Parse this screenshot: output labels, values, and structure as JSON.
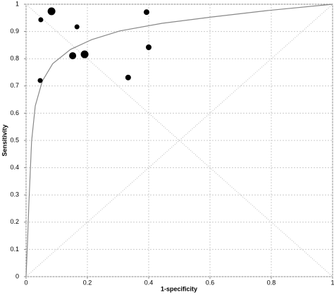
{
  "chart_data": {
    "type": "scatter",
    "x_label": "1-specificity",
    "y_label": "Sensitivity",
    "xlim": [
      0,
      1
    ],
    "ylim": [
      0,
      1
    ],
    "xticks": [
      0,
      0.2,
      0.4,
      0.6,
      0.8,
      1
    ],
    "yticks": [
      0,
      0.1,
      0.2,
      0.3,
      0.4,
      0.5,
      0.6,
      0.7,
      0.8,
      0.9,
      1
    ],
    "grid": true,
    "color": "#000000",
    "points": {
      "x": [
        0.083,
        0.048,
        0.166,
        0.393,
        0.4,
        0.152,
        0.191,
        0.046,
        0.333
      ],
      "y": [
        0.974,
        0.943,
        0.917,
        0.971,
        0.842,
        0.811,
        0.816,
        0.72,
        0.731
      ],
      "sizes": [
        5.5,
        3.5,
        3.5,
        4,
        4,
        5,
        5.5,
        3.5,
        4
      ]
    },
    "curve": {
      "color": "#888888",
      "x": [
        0,
        0.005,
        0.009,
        0.018,
        0.03,
        0.053,
        0.087,
        0.145,
        0.214,
        0.306,
        0.444,
        0.605,
        0.789,
        1
      ],
      "y": [
        0,
        0.135,
        0.264,
        0.497,
        0.627,
        0.718,
        0.782,
        0.834,
        0.87,
        0.902,
        0.93,
        0.953,
        0.977,
        1
      ]
    }
  }
}
